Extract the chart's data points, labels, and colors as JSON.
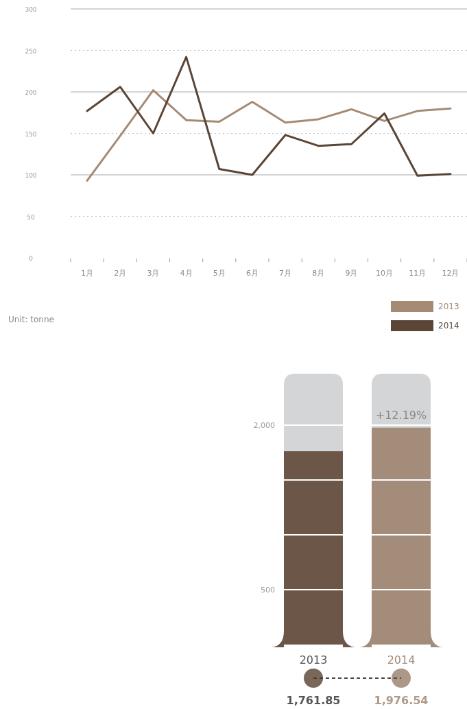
{
  "chart_data": [
    {
      "type": "line",
      "categories": [
        "1月",
        "2月",
        "3月",
        "4月",
        "5月",
        "6月",
        "7月",
        "8月",
        "9月",
        "10月",
        "11月",
        "12月"
      ],
      "series": [
        {
          "name": "2013",
          "color": "#a58a74",
          "values": [
            93,
            147,
            202,
            166,
            164,
            188,
            163,
            167,
            179,
            165,
            177,
            180
          ]
        },
        {
          "name": "2014",
          "color": "#5a4536",
          "values": [
            177,
            206,
            150,
            242,
            107,
            100,
            148,
            135,
            137,
            174,
            99,
            101
          ]
        }
      ],
      "ylim": [
        0,
        300
      ],
      "yticks": [
        0,
        50,
        100,
        150,
        200,
        250,
        300
      ],
      "grid": "y",
      "legend": "bottom right",
      "marker": "none",
      "line_style": "solid",
      "annotations": [
        "Unit: tonne"
      ]
    },
    {
      "type": "bar",
      "categories": [
        "2013",
        "2014"
      ],
      "values": [
        1761.85,
        1976.54
      ],
      "colors": [
        "#6b5647",
        "#a48c7a"
      ],
      "value_labels": [
        "1,761.85",
        "1,976.54"
      ],
      "ylim": [
        0,
        2000
      ],
      "yticks": [
        {
          "value": 500,
          "label": "500"
        },
        {
          "value": 1000,
          "label": null
        },
        {
          "value": 1500,
          "label": null
        },
        {
          "value": 2000,
          "label": "2,000"
        }
      ],
      "grid": "y",
      "annotations": [
        "+12.19%"
      ]
    }
  ]
}
